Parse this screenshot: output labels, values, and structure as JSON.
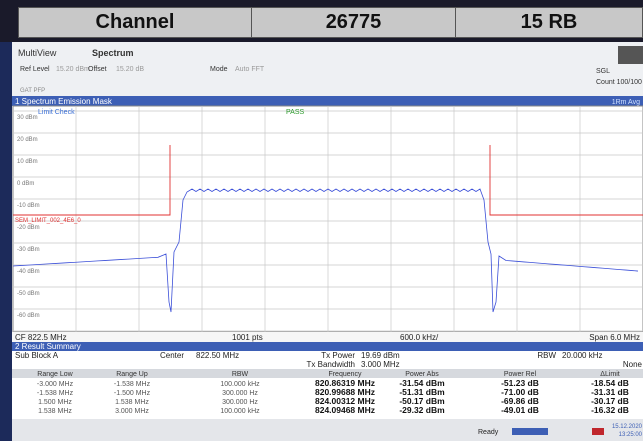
{
  "header": {
    "cells": [
      "Channel",
      "26775",
      "15 RB"
    ]
  },
  "analyzer": {
    "app": "MultiView",
    "tab": "Spectrum",
    "ref_level_label": "Ref Level",
    "ref_level": "15.20 dBm",
    "offset_label": "Offset",
    "offset": "15.20 dB",
    "mode_label": "Mode",
    "mode": "Auto FFT",
    "sgl": "SGL",
    "count": "Count 100/100",
    "gat": "GAT PFP"
  },
  "plot": {
    "title": "1 Spectrum Emission Mask",
    "trace_label": "1Rm Avg",
    "limit_check": "Limit Check",
    "pass": "PASS",
    "limit_name": "SEM_LIMIT_002_4E6_0",
    "y_labels": [
      "30 dBm",
      "20 dBm",
      "10 dBm",
      "0 dBm",
      "-10 dBm",
      "-20 dBm",
      "-30 dBm",
      "-40 dBm",
      "-50 dBm",
      "-60 dBm"
    ],
    "footer": [
      "CF 822.5 MHz",
      "1001 pts",
      "600.0 kHz/",
      "Span 6.0 MHz"
    ]
  },
  "results": {
    "title": "2 Result Summary",
    "sub_block": "Sub Block A",
    "center_label": "Center",
    "center": "822.50 MHz",
    "tx_power_label": "Tx Power",
    "tx_power": "19.69 dBm",
    "tx_bw_label": "Tx Bandwidth",
    "tx_bw": "3.000 MHz",
    "rbw_label": "RBW",
    "rbw": "20.000 kHz",
    "none": "None",
    "columns": [
      "Range Low",
      "Range Up",
      "RBW",
      "Frequency",
      "Power Abs",
      "Power Rel",
      "ΔLimit"
    ],
    "rows": [
      [
        "-3.000 MHz",
        "-1.538 MHz",
        "100.000 kHz",
        "820.86319 MHz",
        "-31.54 dBm",
        "-51.23 dB",
        "-18.54 dB"
      ],
      [
        "-1.538 MHz",
        "-1.500 MHz",
        "300.000 Hz",
        "820.99688 MHz",
        "-51.31 dBm",
        "-71.00 dB",
        "-31.31 dB"
      ],
      [
        "1.500 MHz",
        "1.538 MHz",
        "300.000 Hz",
        "824.00312 MHz",
        "-50.17 dBm",
        "-69.86 dB",
        "-30.17 dB"
      ],
      [
        "1.538 MHz",
        "3.000 MHz",
        "100.000 kHz",
        "824.09468 MHz",
        "-29.32 dBm",
        "-49.01 dB",
        "-16.32 dB"
      ]
    ]
  },
  "status": {
    "ready": "Ready",
    "date": "15.12.2020",
    "time": "13:25:00"
  }
}
